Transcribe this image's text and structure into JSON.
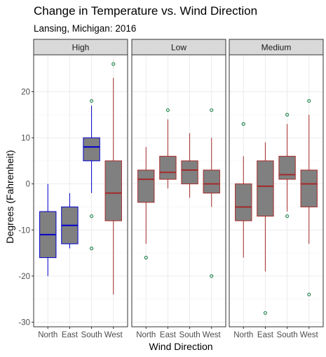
{
  "chart_data": {
    "type": "boxplot",
    "title": "Change in Temperature vs. Wind Direction",
    "subtitle": "Lansing, Michigan: 2016",
    "xlabel": "Wind Direction",
    "ylabel": "Degrees (Fahrenheit)",
    "categories": [
      "North",
      "East",
      "South",
      "West"
    ],
    "ylim": [
      -31,
      28
    ],
    "yticks": [
      -30,
      -20,
      -10,
      0,
      10,
      20
    ],
    "grid": true,
    "legend": "none",
    "colors": {
      "box_fill": "#808080",
      "high_line": "#0000cd",
      "other_line": "#a52a2a",
      "outlier": "#2e8b57",
      "strip_fill": "#d9d9d9"
    },
    "panels": [
      {
        "label": "High",
        "boxes": [
          {
            "category": "North",
            "whisker_low": -20,
            "q1": -16,
            "median": -11,
            "q3": -6,
            "whisker_high": 0,
            "outliers": [],
            "line_color": "#0000cd"
          },
          {
            "category": "East",
            "whisker_low": -14,
            "q1": -13,
            "median": -9,
            "q3": -5,
            "whisker_high": -2,
            "outliers": [],
            "line_color": "#0000cd"
          },
          {
            "category": "South",
            "whisker_low": -2,
            "q1": 5,
            "median": 8,
            "q3": 10,
            "whisker_high": 17,
            "outliers": [
              -14,
              -7,
              18
            ],
            "line_color": "#0000cd"
          },
          {
            "category": "West",
            "whisker_low": -24,
            "q1": -8,
            "median": -2,
            "q3": 5,
            "whisker_high": 23,
            "outliers": [
              26
            ],
            "line_color": "#a52a2a"
          }
        ]
      },
      {
        "label": "Low",
        "boxes": [
          {
            "category": "North",
            "whisker_low": -13,
            "q1": -4,
            "median": 1,
            "q3": 3,
            "whisker_high": 8,
            "outliers": [
              -16
            ],
            "line_color": "#a52a2a"
          },
          {
            "category": "East",
            "whisker_low": -1,
            "q1": 1,
            "median": 2.5,
            "q3": 6,
            "whisker_high": 14,
            "outliers": [
              16
            ],
            "line_color": "#a52a2a"
          },
          {
            "category": "South",
            "whisker_low": -3,
            "q1": 0,
            "median": 3,
            "q3": 5,
            "whisker_high": 11,
            "outliers": [],
            "line_color": "#a52a2a"
          },
          {
            "category": "West",
            "whisker_low": -5,
            "q1": -2,
            "median": 0,
            "q3": 3,
            "whisker_high": 10,
            "outliers": [
              -20,
              16
            ],
            "line_color": "#a52a2a"
          }
        ]
      },
      {
        "label": "Medium",
        "boxes": [
          {
            "category": "North",
            "whisker_low": -16,
            "q1": -8,
            "median": -5,
            "q3": 0,
            "whisker_high": 6,
            "outliers": [
              13
            ],
            "line_color": "#a52a2a"
          },
          {
            "category": "East",
            "whisker_low": -19,
            "q1": -7,
            "median": -0.5,
            "q3": 5,
            "whisker_high": 9,
            "outliers": [
              -28
            ],
            "line_color": "#a52a2a"
          },
          {
            "category": "South",
            "whisker_low": -6,
            "q1": 1,
            "median": 2,
            "q3": 6,
            "whisker_high": 13,
            "outliers": [
              -7,
              15
            ],
            "line_color": "#a52a2a"
          },
          {
            "category": "West",
            "whisker_low": -13,
            "q1": -5,
            "median": 0,
            "q3": 3,
            "whisker_high": 15,
            "outliers": [
              -24,
              18
            ],
            "line_color": "#a52a2a"
          }
        ]
      }
    ]
  }
}
